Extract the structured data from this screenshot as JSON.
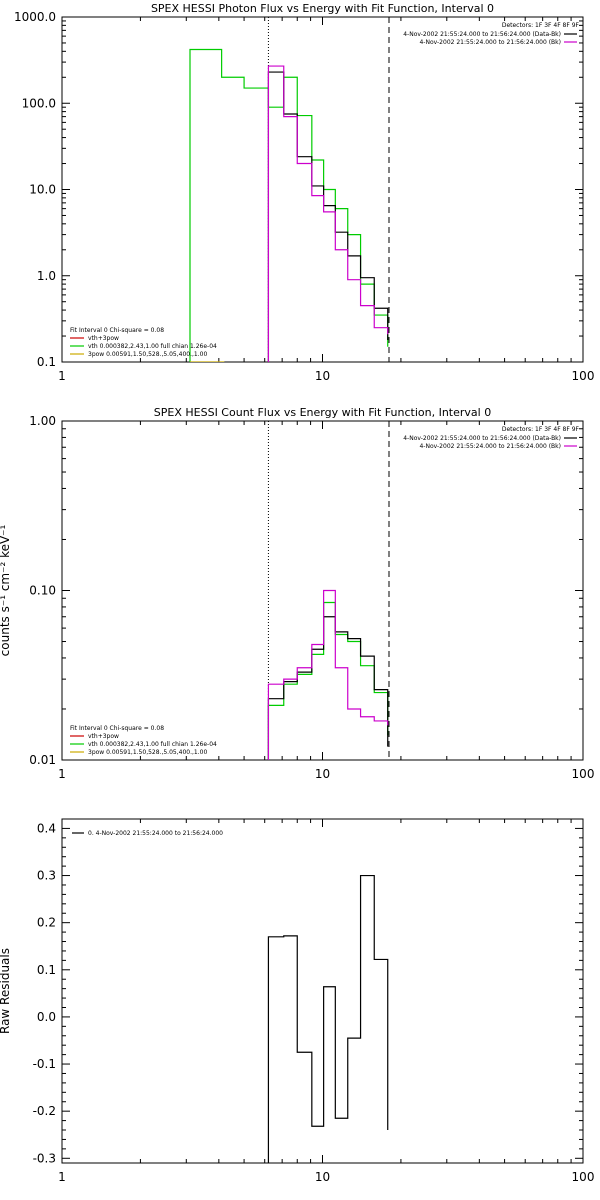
{
  "chart_data": [
    {
      "type": "line",
      "title": "SPEX HESSI Photon Flux vs Energy with Fit Function, Interval 0",
      "xscale": "log",
      "yscale": "log",
      "xlim": [
        1,
        100
      ],
      "ylim": [
        0.1,
        1000
      ],
      "xticks": [
        {
          "value": 1,
          "label": "1"
        },
        {
          "value": 10,
          "label": "10"
        },
        {
          "value": 100,
          "label": "100"
        }
      ],
      "yticks": [
        {
          "value": 0.1,
          "label": "0.1"
        },
        {
          "value": 1,
          "label": "1.0"
        },
        {
          "value": 10,
          "label": "10.0"
        },
        {
          "value": 100,
          "label": "100.0"
        },
        {
          "value": 1000,
          "label": "1000.0"
        }
      ],
      "vlines": [
        {
          "x": 6.2,
          "style": "dotted",
          "color": "#000000"
        },
        {
          "x": 18.0,
          "style": "dashed",
          "color": "#000000"
        }
      ],
      "legend_top_right": {
        "header": "Detectors: 1F 3F 4F 8F 9F",
        "entries": [
          {
            "text": "4-Nov-2002 21:55:24.000 to 21:56:24.000 (Data-Bk)",
            "color": "#000000"
          },
          {
            "text": "4-Nov-2002 21:55:24.000 to 21:56:24.000 (Bk)",
            "color": "#cc00cc"
          }
        ]
      },
      "legend_bottom_left": {
        "header": "Fit Interval 0   Chi-square = 0.08",
        "entries": [
          {
            "text": "vth+3pow",
            "color": "#cc0000"
          },
          {
            "text": "vth 0.000382,2.43,1.00   full chian 1.26e-04",
            "color": "#00cc00"
          },
          {
            "text": "3pow 0.00591,1.50,528.,5.05,400.,1.00",
            "color": "#ccaa00"
          }
        ]
      },
      "series": [
        {
          "color": "#00cc00",
          "edges": [
            3.1,
            4.1,
            5.0,
            6.2,
            7.1,
            8.0,
            9.1,
            10.1,
            11.2,
            12.5,
            14.0,
            15.8,
            17.8
          ],
          "values": [
            420,
            200,
            150,
            90,
            200,
            72,
            22,
            10,
            6,
            3,
            0.8,
            0.35,
            0.15
          ]
        },
        {
          "color": "#000000",
          "edges": [
            6.2,
            7.1,
            8.0,
            9.1,
            10.1,
            11.2,
            12.5,
            14.0,
            15.8,
            17.8
          ],
          "values": [
            230,
            75,
            24,
            11,
            6.5,
            3.2,
            1.7,
            0.95,
            0.42,
            0.18
          ]
        },
        {
          "color": "#cc00cc",
          "edges": [
            6.2,
            7.1,
            8.0,
            9.1,
            10.1,
            11.2,
            12.5,
            14.0,
            15.8,
            17.8
          ],
          "values": [
            270,
            70,
            20,
            8.5,
            5.5,
            2.0,
            0.9,
            0.45,
            0.25,
            0.21
          ]
        },
        {
          "color": "#ccaa00",
          "edges": [
            3.1,
            4.2
          ],
          "values": [
            0.1
          ]
        }
      ]
    },
    {
      "type": "line",
      "title": "SPEX HESSI Count Flux vs Energy with Fit Function, Interval 0",
      "ylabel": "counts s⁻¹ cm⁻² keV⁻¹",
      "xscale": "log",
      "yscale": "log",
      "xlim": [
        1,
        100
      ],
      "ylim": [
        0.01,
        1.0
      ],
      "xticks": [
        {
          "value": 1,
          "label": "1"
        },
        {
          "value": 10,
          "label": "10"
        },
        {
          "value": 100,
          "label": "100"
        }
      ],
      "yticks": [
        {
          "value": 0.01,
          "label": "0.01"
        },
        {
          "value": 0.1,
          "label": "0.10"
        },
        {
          "value": 1.0,
          "label": "1.00"
        }
      ],
      "vlines": [
        {
          "x": 6.2,
          "style": "dotted",
          "color": "#000000"
        },
        {
          "x": 18.0,
          "style": "dashed",
          "color": "#000000"
        }
      ],
      "legend_top_right": {
        "header": "Detectors: 1F 3F 4F 8F 9F",
        "entries": [
          {
            "text": "4-Nov-2002 21:55:24.000 to 21:56:24.000 (Data-Bk)",
            "color": "#000000"
          },
          {
            "text": "4-Nov-2002 21:55:24.000 to 21:56:24.000 (Bk)",
            "color": "#cc00cc"
          }
        ]
      },
      "legend_bottom_left": {
        "header": "Fit Interval 0   Chi-square = 0.08",
        "entries": [
          {
            "text": "vth+3pow",
            "color": "#cc0000"
          },
          {
            "text": "vth 0.000382,2.43,1.00   full chian 1.26e-04",
            "color": "#00cc00"
          },
          {
            "text": "3pow 0.00591,1.50,528.,5.05,400.,1.00",
            "color": "#ccaa00"
          }
        ]
      },
      "series": [
        {
          "color": "#00cc00",
          "edges": [
            6.2,
            7.1,
            8.0,
            9.1,
            10.1,
            11.2,
            12.5,
            14.0,
            15.8,
            17.8
          ],
          "values": [
            0.021,
            0.028,
            0.032,
            0.042,
            0.085,
            0.055,
            0.05,
            0.036,
            0.025,
            0.014
          ]
        },
        {
          "color": "#000000",
          "edges": [
            6.2,
            7.1,
            8.0,
            9.1,
            10.1,
            11.2,
            12.5,
            14.0,
            15.8,
            17.8
          ],
          "values": [
            0.023,
            0.029,
            0.033,
            0.045,
            0.07,
            0.057,
            0.052,
            0.041,
            0.026,
            0.012
          ]
        },
        {
          "color": "#cc00cc",
          "edges": [
            6.2,
            7.1,
            8.0,
            9.1,
            10.1,
            11.2,
            12.5,
            14.0,
            15.8,
            17.8
          ],
          "values": [
            0.028,
            0.03,
            0.035,
            0.048,
            0.1,
            0.035,
            0.02,
            0.018,
            0.017,
            0.016
          ]
        }
      ]
    },
    {
      "type": "line",
      "ylabel": "Raw Residuals",
      "xscale": "log",
      "yscale": "linear",
      "xlim": [
        1,
        100
      ],
      "ylim": [
        -0.31,
        0.42
      ],
      "xticks": [
        {
          "value": 1,
          "label": "1"
        },
        {
          "value": 10,
          "label": "10"
        },
        {
          "value": 100,
          "label": "100"
        }
      ],
      "yticks": [
        {
          "value": 0.4,
          "label": "0.4"
        },
        {
          "value": 0.3,
          "label": "0.3"
        },
        {
          "value": 0.2,
          "label": "0.2"
        },
        {
          "value": 0.1,
          "label": "0.1"
        },
        {
          "value": 0.0,
          "label": "0.0"
        },
        {
          "value": -0.1,
          "label": "-0.1"
        },
        {
          "value": -0.2,
          "label": "-0.2"
        },
        {
          "value": -0.3,
          "label": "-0.3"
        }
      ],
      "legend_top_left": {
        "entries": [
          {
            "text": "0.  4-Nov-2002 21:55:24.000 to 21:56:24.000",
            "color": "#000000"
          }
        ]
      },
      "series": [
        {
          "color": "#000000",
          "edges": [
            6.2,
            7.1,
            8.0,
            9.1,
            10.1,
            11.2,
            12.5,
            14.0,
            15.8,
            17.8
          ],
          "values": [
            0.17,
            0.172,
            -0.075,
            -0.232,
            0.064,
            -0.215,
            -0.045,
            0.3,
            0.122,
            -0.24
          ]
        }
      ]
    }
  ]
}
